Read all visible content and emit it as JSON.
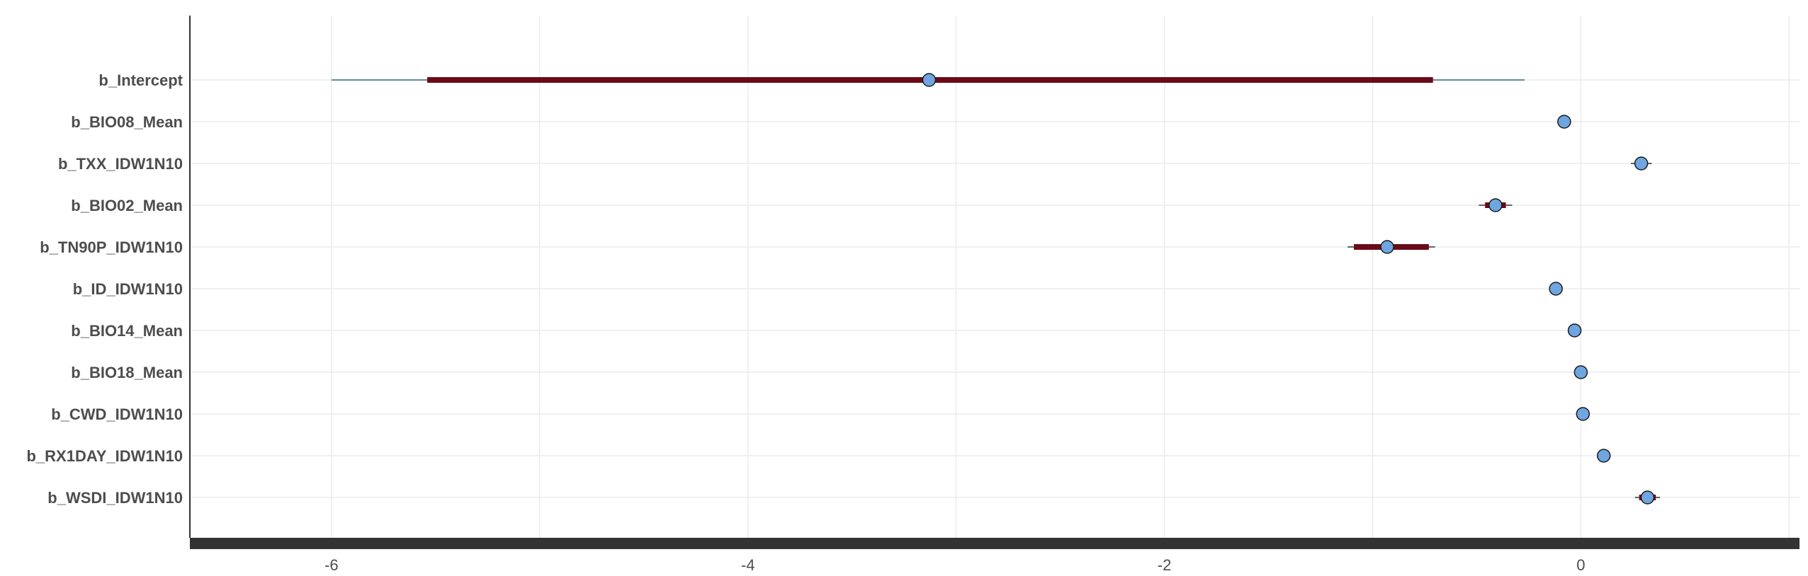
{
  "chart_data": {
    "type": "interval",
    "title": "",
    "xlabel": "",
    "ylabel": "",
    "xlim": [
      -6.68,
      1.05
    ],
    "x_ticks": [
      -6,
      -4,
      -2,
      0
    ],
    "x_tick_labels": [
      "-6",
      "-4",
      "-2",
      "0"
    ],
    "grid": true,
    "legend": "none",
    "parameters": [
      {
        "name": "b_Intercept",
        "estimate": -3.13,
        "inner": [
          -5.54,
          -0.71
        ],
        "outer": [
          -6.0,
          -0.27
        ]
      },
      {
        "name": "b_BIO08_Mean",
        "estimate": -0.08,
        "inner": [
          -0.1,
          -0.06
        ],
        "outer": [
          -0.11,
          -0.05
        ]
      },
      {
        "name": "b_TXX_IDW1N10",
        "estimate": 0.29,
        "inner": [
          0.26,
          0.32
        ],
        "outer": [
          0.24,
          0.34
        ]
      },
      {
        "name": "b_BIO02_Mean",
        "estimate": -0.41,
        "inner": [
          -0.46,
          -0.36
        ],
        "outer": [
          -0.49,
          -0.33
        ]
      },
      {
        "name": "b_TN90P_IDW1N10",
        "estimate": -0.93,
        "inner": [
          -1.09,
          -0.73
        ],
        "outer": [
          -1.12,
          -0.7
        ]
      },
      {
        "name": "b_ID_IDW1N10",
        "estimate": -0.12,
        "inner": [
          -0.14,
          -0.1
        ],
        "outer": [
          -0.15,
          -0.09
        ]
      },
      {
        "name": "b_BIO14_Mean",
        "estimate": -0.03,
        "inner": [
          -0.05,
          -0.01
        ],
        "outer": [
          -0.06,
          0.0
        ]
      },
      {
        "name": "b_BIO18_Mean",
        "estimate": 0.0,
        "inner": [
          -0.02,
          0.02
        ],
        "outer": [
          -0.03,
          0.03
        ]
      },
      {
        "name": "b_CWD_IDW1N10",
        "estimate": 0.01,
        "inner": [
          -0.01,
          0.03
        ],
        "outer": [
          -0.02,
          0.04
        ]
      },
      {
        "name": "b_RX1DAY_IDW1N10",
        "estimate": 0.11,
        "inner": [
          0.09,
          0.13
        ],
        "outer": [
          0.08,
          0.14
        ]
      },
      {
        "name": "b_WSDI_IDW1N10",
        "estimate": 0.32,
        "inner": [
          0.28,
          0.36
        ],
        "outer": [
          0.26,
          0.38
        ]
      }
    ],
    "colors": {
      "inner_interval": "#6b0a17",
      "outer_interval": "#2e6b78",
      "point_fill": "#6fa5e0",
      "point_stroke": "#1a1a1a",
      "grid": "#ebebeb",
      "axis": "#333333",
      "text": "#4d4d4d"
    }
  }
}
